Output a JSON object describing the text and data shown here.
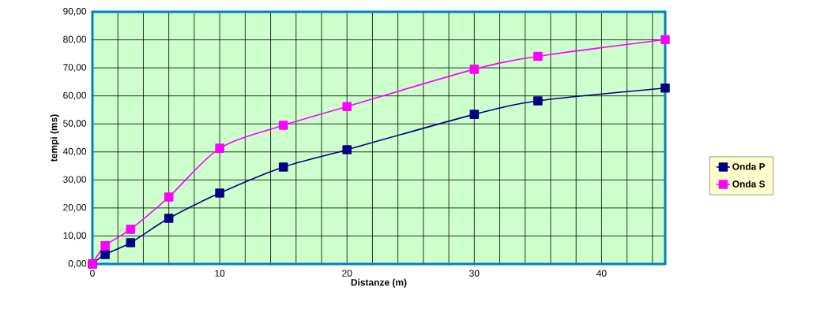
{
  "chart_data": {
    "type": "line",
    "xlabel": "Distanze (m)",
    "ylabel": "tempi (ms)",
    "x": [
      0,
      1,
      3,
      6,
      10,
      15,
      20,
      30,
      35,
      45
    ],
    "series": [
      {
        "name": "Onda P",
        "color": "#000080",
        "values": [
          0,
          3.4,
          7.6,
          16.3,
          25.3,
          34.6,
          40.8,
          53.4,
          58.2,
          62.8
        ]
      },
      {
        "name": "Onda S",
        "color": "#ff00ff",
        "values": [
          0,
          6.5,
          12.4,
          23.9,
          41.3,
          49.5,
          56.2,
          69.5,
          74.1,
          80.1
        ]
      }
    ],
    "xlim": [
      0,
      45
    ],
    "xticks": [
      0,
      {
        "value": 2,
        "label": null
      },
      {
        "value": 4,
        "label": null
      },
      {
        "value": 6,
        "label": null
      },
      {
        "value": 8,
        "label": null
      },
      10,
      {
        "value": 12,
        "label": null
      },
      {
        "value": 14,
        "label": null
      },
      {
        "value": 16,
        "label": null
      },
      {
        "value": 18,
        "label": null
      },
      20,
      {
        "value": 22,
        "label": null
      },
      {
        "value": 24,
        "label": null
      },
      {
        "value": 26,
        "label": null
      },
      {
        "value": 28,
        "label": null
      },
      30,
      {
        "value": 32,
        "label": null
      },
      {
        "value": 34,
        "label": null
      },
      {
        "value": 36,
        "label": null
      },
      {
        "value": 38,
        "label": null
      },
      40,
      {
        "value": 42,
        "label": null
      },
      {
        "value": 44,
        "label": null
      }
    ],
    "ylim": [
      0,
      90
    ],
    "yticks": [
      {
        "value": 0,
        "label": "0,00"
      },
      {
        "value": 10,
        "label": "10,00"
      },
      {
        "value": 20,
        "label": "20,00"
      },
      {
        "value": 30,
        "label": "30,00"
      },
      {
        "value": 40,
        "label": "40,00"
      },
      {
        "value": 50,
        "label": "50,00"
      },
      {
        "value": 60,
        "label": "60,00"
      },
      {
        "value": 70,
        "label": "70,00"
      },
      {
        "value": 80,
        "label": "80,00"
      },
      {
        "value": 90,
        "label": "90,00"
      }
    ],
    "grid": true,
    "legend": "right",
    "marker": "square",
    "line_style": "solid"
  }
}
